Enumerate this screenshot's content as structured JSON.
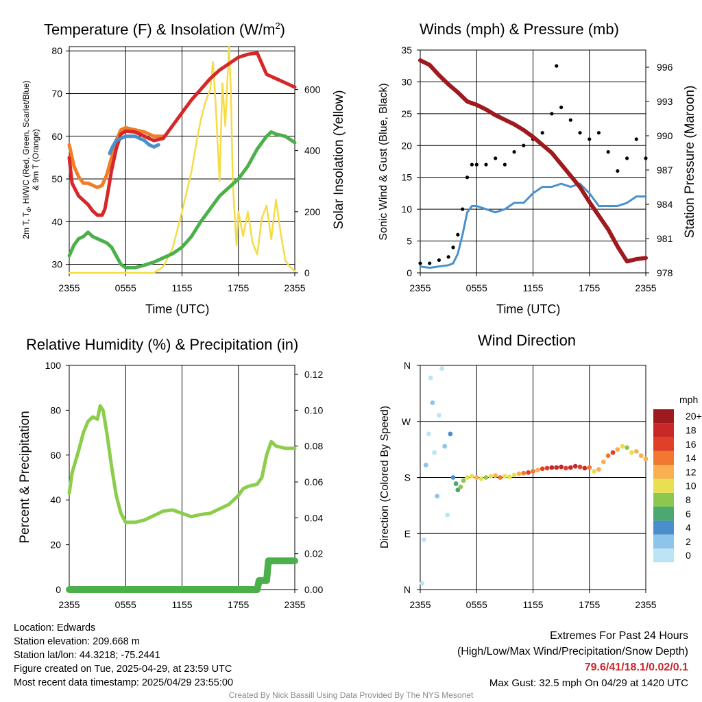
{
  "colors": {
    "red": "#d62828",
    "orange": "#f07d28",
    "blue": "#4a90cc",
    "green": "#4cb04a",
    "yellow": "#f5dc46",
    "maroon": "#9e1a1e",
    "black": "#000000",
    "light_green": "#8ccd4c",
    "precip_green": "#4cb04a",
    "highlight": "#c8262c",
    "credit_gray": "#8a8a8a"
  },
  "chart_data": [
    {
      "id": "temp",
      "type": "line",
      "title": "Temperature (F) & Insolation (W/m²)",
      "xlabel": "Time (UTC)",
      "ylabel": "2m T, Td, HI/WC (Red, Green, Scarlet/Blue) & 9m T (Orange)",
      "y2label": "Solar Insolation (Yellow)",
      "xticks": [
        "2355",
        "0555",
        "1155",
        "1755",
        "2355"
      ],
      "ylim": [
        28,
        81
      ],
      "yticks": [
        30,
        40,
        50,
        60,
        70,
        80
      ],
      "y2lim": [
        0,
        740
      ],
      "y2ticks": [
        0,
        200,
        400,
        600
      ],
      "x_unit": "hours since 2355 UTC",
      "series": [
        {
          "name": "2m T",
          "color": "red",
          "y_axis": "left",
          "x": [
            0,
            0.3,
            1,
            2,
            2.5,
            3,
            3.5,
            3.8,
            4.2,
            4.5,
            5,
            5.5,
            6,
            7,
            8,
            9,
            10,
            11,
            12,
            13,
            14,
            15,
            16,
            17,
            18,
            19,
            20,
            20.5,
            21,
            22,
            23,
            24
          ],
          "y": [
            55,
            49,
            46,
            44,
            42.5,
            41.5,
            41.5,
            43,
            48,
            52,
            57,
            60.5,
            61.2,
            61,
            60,
            59,
            59.5,
            62.5,
            65.5,
            68.5,
            71,
            73.5,
            75.5,
            77,
            78.5,
            79.2,
            79.5,
            77,
            74.5,
            73.5,
            72.5,
            71.5
          ]
        },
        {
          "name": "9m T",
          "color": "orange",
          "y_axis": "left",
          "x": [
            0,
            0.5,
            1,
            1.5,
            2,
            2.5,
            3,
            3.5,
            4,
            4.5,
            5,
            5.5,
            6,
            7,
            8,
            9,
            10
          ],
          "y": [
            58,
            53,
            50.5,
            49,
            49,
            48.5,
            48,
            48.5,
            51,
            55,
            59,
            61.5,
            62,
            61.5,
            61,
            60,
            60
          ]
        },
        {
          "name": "HI/WC",
          "color": "blue",
          "y_axis": "left",
          "x": [
            4.3,
            4.6,
            5,
            6,
            7,
            8,
            8.5,
            9,
            9.5
          ],
          "y": [
            56,
            57.5,
            59,
            60,
            60,
            59,
            58,
            57.5,
            58
          ]
        },
        {
          "name": "2m Td",
          "color": "green",
          "y_axis": "left",
          "x": [
            0,
            0.5,
            1,
            1.5,
            2,
            2.5,
            3,
            3.5,
            4,
            4.5,
            5,
            5.5,
            6,
            7,
            8,
            9,
            10,
            11,
            12,
            13,
            14,
            15,
            16,
            17,
            18,
            19,
            20,
            20.5,
            21,
            21.5,
            22,
            23,
            24
          ],
          "y": [
            32,
            34.5,
            36,
            36.5,
            37.5,
            36.5,
            36,
            35.5,
            35,
            34,
            32,
            30,
            29.2,
            29.2,
            29.8,
            30.5,
            31.5,
            32.5,
            34,
            36.5,
            40,
            43,
            46,
            48,
            50,
            53,
            57,
            58.5,
            60,
            61,
            60.5,
            60,
            58.5
          ]
        },
        {
          "name": "Solar Insolation",
          "color": "yellow",
          "y_axis": "right",
          "x": [
            0,
            9,
            10,
            11,
            12,
            13,
            13.5,
            14,
            14.5,
            15,
            15.3,
            15.6,
            16,
            16.3,
            16.6,
            17,
            17.2,
            17.4,
            17.6,
            17.8,
            18,
            18.5,
            19,
            19.5,
            20,
            20.5,
            21,
            21.5,
            22,
            22.5,
            23,
            23.5,
            24
          ],
          "y": [
            0,
            0,
            20,
            80,
            200,
            330,
            420,
            500,
            560,
            600,
            690,
            540,
            300,
            620,
            480,
            740,
            600,
            300,
            190,
            90,
            200,
            120,
            200,
            100,
            60,
            180,
            220,
            110,
            240,
            130,
            40,
            20,
            5
          ]
        }
      ]
    },
    {
      "id": "wind",
      "type": "line",
      "title": "Winds (mph) & Pressure (mb)",
      "xlabel": "Time (UTC)",
      "ylabel": "Sonic Wind & Gust (Blue, Black)",
      "y2label": "Station Pressure (Maroon)",
      "xticks": [
        "2355",
        "0555",
        "1155",
        "1755",
        "2355"
      ],
      "ylim": [
        0,
        35
      ],
      "yticks": [
        0,
        5,
        10,
        15,
        20,
        25,
        30,
        35
      ],
      "y2lim": [
        978,
        997.5
      ],
      "y2ticks": [
        978,
        981,
        984,
        987,
        990,
        993,
        996
      ],
      "x_unit": "hours since 2355 UTC",
      "series": [
        {
          "name": "Sonic Wind",
          "color": "blue",
          "y_axis": "left",
          "x": [
            0,
            1,
            2,
            3,
            3.5,
            4,
            4.5,
            5,
            5.5,
            6,
            7,
            8,
            9,
            10,
            11,
            12,
            13,
            14,
            15,
            16,
            17,
            18,
            19,
            20,
            21,
            22,
            23,
            24
          ],
          "y": [
            1,
            0.8,
            1,
            1.2,
            1.5,
            3,
            6,
            9.5,
            10.5,
            10.5,
            10,
            9.5,
            10,
            11,
            11,
            12.5,
            13.5,
            13.5,
            14,
            13.5,
            14,
            12.5,
            10.5,
            10.5,
            10.5,
            11,
            12,
            12
          ]
        },
        {
          "name": "Sonic Gust",
          "color": "black",
          "y_axis": "left",
          "x": [
            0,
            1,
            2,
            3,
            3.5,
            4,
            4.5,
            5,
            5.5,
            6,
            7,
            8,
            9,
            10,
            11,
            12,
            13,
            14,
            14.5,
            15,
            16,
            17,
            18,
            19,
            20,
            21,
            22,
            23,
            24
          ],
          "y": [
            1.5,
            1.5,
            2,
            2.5,
            4,
            6,
            10,
            15,
            17,
            17,
            17,
            18,
            17,
            19,
            20,
            21,
            22,
            25,
            32.5,
            26,
            24,
            22,
            21,
            22,
            19,
            16,
            18,
            21,
            18
          ]
        },
        {
          "name": "Station Pressure",
          "color": "maroon",
          "y_axis": "right",
          "x": [
            0,
            1,
            2,
            3,
            4,
            5,
            6,
            7,
            8,
            9,
            10,
            11,
            12,
            13,
            14,
            15,
            16,
            17,
            18,
            19,
            20,
            21,
            22,
            23,
            24
          ],
          "y": [
            996.6,
            996.2,
            995.3,
            994.5,
            993.8,
            993.0,
            992.7,
            992.3,
            991.8,
            991.4,
            991.0,
            990.5,
            989.9,
            989.2,
            988.5,
            987.5,
            986.5,
            985.5,
            984.2,
            983.0,
            981.8,
            980.3,
            979.0,
            979.2,
            979.3
          ]
        }
      ]
    },
    {
      "id": "rh",
      "type": "line",
      "title": "Relative Humidity (%) & Precipitation (in)",
      "xlabel": "",
      "ylabel": "Percent & Precipitation",
      "xticks": [
        "2355",
        "0555",
        "1155",
        "1755",
        "2355"
      ],
      "ylim": [
        0,
        100
      ],
      "yticks": [
        0,
        20,
        40,
        60,
        80,
        100
      ],
      "y2lim": [
        0,
        0.125
      ],
      "y2ticks": [
        "0.00",
        "0.02",
        "0.04",
        "0.06",
        "0.08",
        "0.10",
        "0.12"
      ],
      "x_unit": "hours since 2355 UTC",
      "series": [
        {
          "name": "Relative Humidity",
          "color": "light_green",
          "y_axis": "left",
          "x": [
            0,
            0.3,
            1,
            1.5,
            2,
            2.5,
            3,
            3.3,
            3.6,
            4,
            4.5,
            5,
            5.5,
            6,
            7,
            8,
            9,
            10,
            11,
            12,
            13,
            14,
            15,
            16,
            17,
            18,
            18.5,
            19,
            20,
            20.5,
            21,
            21.5,
            22,
            23,
            24
          ],
          "y": [
            43,
            52,
            62,
            70,
            75,
            77,
            76,
            82,
            80,
            70,
            55,
            42,
            34,
            30,
            30,
            31,
            33,
            35,
            35.5,
            34,
            32.5,
            33.5,
            34,
            36,
            38,
            42,
            45,
            46,
            47,
            50,
            60,
            66,
            64,
            63,
            63
          ]
        },
        {
          "name": "Precipitation",
          "color": "precip_green",
          "y_axis": "right",
          "x": [
            0,
            20,
            20.2,
            21,
            21.2,
            24
          ],
          "y": [
            0,
            0,
            0.005,
            0.005,
            0.016,
            0.016
          ]
        }
      ]
    },
    {
      "id": "wdir",
      "type": "scatter",
      "title": "Wind Direction",
      "ylabel": "Direction (Colored By Speed)",
      "xticks": [
        "2355",
        "0555",
        "1155",
        "1755",
        "2355"
      ],
      "ylim": [
        0,
        360
      ],
      "yticks": [
        "N",
        "E",
        "S",
        "W",
        "N"
      ],
      "x_unit": "hours since 2355 UTC",
      "legend_title": "mph",
      "legend_placement": "right",
      "legend_labels": [
        "0",
        "2",
        "4",
        "6",
        "8",
        "10",
        "12",
        "14",
        "16",
        "18",
        "20+"
      ],
      "legend_colors": [
        "#bde4f5",
        "#8cc4ea",
        "#4a8fcc",
        "#4aa870",
        "#8cc850",
        "#e8e050",
        "#fab050",
        "#f07830",
        "#e04028",
        "#c82828",
        "#9e1a1e"
      ],
      "points": {
        "x": [
          0.2,
          0.4,
          0.6,
          0.9,
          1.1,
          1.3,
          1.5,
          1.8,
          2.0,
          2.3,
          2.6,
          2.9,
          3.2,
          3.5,
          3.8,
          4.0,
          4.3,
          4.6,
          5.0,
          5.5,
          6.0,
          6.5,
          7.0,
          7.5,
          8.0,
          8.5,
          9.0,
          9.5,
          10.0,
          10.5,
          11.0,
          11.5,
          12.0,
          12.5,
          13.0,
          13.5,
          14.0,
          14.5,
          15.0,
          15.5,
          16.0,
          16.5,
          17.0,
          17.5,
          18.0,
          18.5,
          19.0,
          19.5,
          20.0,
          20.5,
          21.0,
          21.5,
          22.0,
          22.5,
          23.0,
          23.5,
          24.0
        ],
        "y": [
          10,
          80,
          200,
          250,
          340,
          300,
          220,
          150,
          280,
          355,
          230,
          120,
          250,
          180,
          170,
          160,
          165,
          175,
          180,
          182,
          180,
          178,
          180,
          182,
          183,
          180,
          182,
          181,
          184,
          186,
          187,
          188,
          190,
          192,
          194,
          195,
          196,
          196,
          197,
          195,
          196,
          198,
          197,
          195,
          196,
          190,
          193,
          205,
          215,
          220,
          225,
          230,
          228,
          220,
          222,
          215,
          210
        ],
        "speed": [
          0,
          0,
          1,
          0,
          0,
          1,
          0,
          1,
          0,
          0,
          1,
          0,
          3,
          4,
          5,
          6,
          7,
          8,
          9,
          10,
          11,
          9,
          8,
          10,
          12,
          13,
          10,
          9,
          10,
          12,
          14,
          16,
          13,
          12,
          15,
          16,
          17,
          18,
          17,
          16,
          18,
          17,
          16,
          17,
          13,
          10,
          12,
          11,
          14,
          16,
          12,
          9,
          7,
          10,
          11,
          12,
          11
        ]
      }
    }
  ],
  "info": {
    "location": "Location: Edwards",
    "elevation": "Station elevation: 209.668 m",
    "latlon": "Station lat/lon: 44.3218; -75.2441",
    "created": "Figure created on Tue, 2025-04-29, at 23:59 UTC",
    "recent": "Most recent data timestamp: 2025/04/29 23:55:00"
  },
  "extremes": {
    "title": "Extremes For Past 24 Hours",
    "subtitle": "(High/Low/Max Wind/Precipitation/Snow Depth)",
    "values": "79.6/41/18.1/0.02/0.1",
    "gust": "Max Gust: 32.5 mph On 04/29 at 1420 UTC"
  },
  "credit": "Created By Nick Bassill Using Data Provided By The NYS Mesonet"
}
